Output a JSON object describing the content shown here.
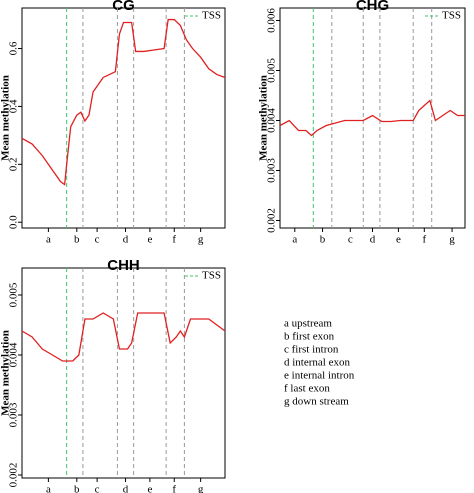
{
  "chart_data": [
    {
      "type": "line",
      "title": "CG",
      "y_label": "Mean methylation",
      "color": "#e02020",
      "x": [
        0,
        5,
        10,
        15,
        19,
        21,
        22,
        24,
        27,
        29,
        31,
        33,
        35,
        40,
        46,
        48,
        50,
        54,
        56,
        60,
        65,
        70,
        72,
        75,
        78,
        81,
        84,
        88,
        92,
        96,
        100
      ],
      "values": [
        0.29,
        0.27,
        0.23,
        0.18,
        0.14,
        0.13,
        0.2,
        0.33,
        0.37,
        0.38,
        0.35,
        0.37,
        0.45,
        0.5,
        0.52,
        0.65,
        0.69,
        0.69,
        0.59,
        0.59,
        0.595,
        0.6,
        0.7,
        0.7,
        0.68,
        0.63,
        0.6,
        0.57,
        0.53,
        0.51,
        0.5
      ],
      "xlim": [
        0,
        100
      ],
      "ylim": [
        -0.02,
        0.74
      ],
      "xticks": [
        {
          "value": 13,
          "label": "a"
        },
        {
          "value": 27,
          "label": "b"
        },
        {
          "value": 37,
          "label": "c"
        },
        {
          "value": 51,
          "label": "d"
        },
        {
          "value": 63,
          "label": "e"
        },
        {
          "value": 75,
          "label": "f"
        },
        {
          "value": 88,
          "label": "g"
        }
      ],
      "yticks": [
        {
          "value": 0,
          "label": "0.0"
        },
        0.2,
        0.4,
        0.6
      ],
      "tss": {
        "x": 22,
        "label": "TSS",
        "color": "#3ec46d"
      },
      "boundaries": [
        30,
        47,
        55,
        71,
        80
      ],
      "boundary_color": "#999999"
    },
    {
      "type": "line",
      "title": "CHG",
      "y_label": "Mean methylation",
      "color": "#e02020",
      "x": [
        0,
        5,
        10,
        14,
        17,
        20,
        25,
        30,
        35,
        40,
        45,
        50,
        55,
        60,
        65,
        70,
        72,
        75,
        78,
        81,
        84,
        88,
        92,
        96,
        100
      ],
      "values": [
        0.0039,
        0.004,
        0.0038,
        0.0038,
        0.0037,
        0.0038,
        0.0039,
        0.00395,
        0.004,
        0.004,
        0.004,
        0.0041,
        0.00398,
        0.00398,
        0.004,
        0.004,
        0.004,
        0.0042,
        0.0043,
        0.0044,
        0.004,
        0.0041,
        0.0042,
        0.0041,
        0.0041
      ],
      "xlim": [
        0,
        100
      ],
      "ylim": [
        0.00185,
        0.00625
      ],
      "xticks": [
        {
          "value": 8,
          "label": "a"
        },
        {
          "value": 23,
          "label": "b"
        },
        {
          "value": 38,
          "label": "c"
        },
        {
          "value": 50,
          "label": "d"
        },
        {
          "value": 64,
          "label": "e"
        },
        {
          "value": 78,
          "label": "f"
        },
        {
          "value": 93,
          "label": "g"
        }
      ],
      "yticks": [
        0.002,
        0.003,
        0.004,
        0.005,
        0.006
      ],
      "tss": {
        "x": 18,
        "label": "TSS",
        "color": "#3ec46d"
      },
      "boundaries": [
        28,
        45,
        54,
        72,
        82
      ],
      "boundary_color": "#999999"
    },
    {
      "type": "line",
      "title": "CHH",
      "y_label": "Mean methylation",
      "color": "#e02020",
      "x": [
        0,
        5,
        10,
        15,
        20,
        25,
        28,
        31,
        35,
        40,
        45,
        48,
        52,
        54,
        57,
        62,
        66,
        70,
        73,
        76,
        78,
        80,
        83,
        88,
        92,
        96,
        100
      ],
      "values": [
        0.0044,
        0.0043,
        0.0041,
        0.004,
        0.0039,
        0.0039,
        0.004,
        0.0046,
        0.0046,
        0.0047,
        0.0046,
        0.0041,
        0.0041,
        0.0042,
        0.0047,
        0.0047,
        0.0047,
        0.0047,
        0.0042,
        0.0043,
        0.0044,
        0.0043,
        0.0046,
        0.0046,
        0.0046,
        0.0045,
        0.0044
      ],
      "xlim": [
        0,
        100
      ],
      "ylim": [
        0.00195,
        0.00545
      ],
      "xticks": [
        {
          "value": 13,
          "label": "a"
        },
        {
          "value": 27,
          "label": "b"
        },
        {
          "value": 37,
          "label": "c"
        },
        {
          "value": 51,
          "label": "d"
        },
        {
          "value": 63,
          "label": "e"
        },
        {
          "value": 75,
          "label": "f"
        },
        {
          "value": 88,
          "label": "g"
        }
      ],
      "yticks": [
        0.002,
        0.003,
        0.004,
        0.005
      ],
      "tss": {
        "x": 22,
        "label": "TSS",
        "color": "#3ec46d"
      },
      "boundaries": [
        30,
        47,
        55,
        71,
        80
      ],
      "boundary_color": "#999999"
    }
  ],
  "region_key": [
    "a upstream",
    "b first exon",
    "c first intron",
    "d internal exon",
    "e internal intron",
    "f last exon",
    "g down stream"
  ]
}
